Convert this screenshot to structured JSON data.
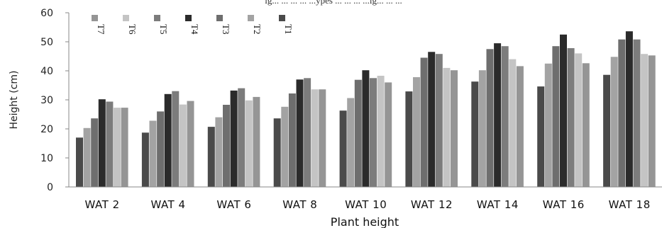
{
  "chart_data": {
    "type": "bar",
    "title": "",
    "top_caption_fragment": "ig... ... ... ... ...ypes ... ... ... ...ig... ... ...",
    "xlabel": "Plant height",
    "ylabel": "Height (cm)",
    "ylim": [
      0,
      60
    ],
    "yticks": [
      0,
      10,
      20,
      30,
      40,
      50,
      60
    ],
    "categories": [
      "WAT 2",
      "WAT 4",
      "WAT 6",
      "WAT 8",
      "WAT 10",
      "WAT 12",
      "WAT 14",
      "WAT 16",
      "WAT 18"
    ],
    "legend_position": "top-left, rotated labels",
    "grid": false,
    "series": [
      {
        "name": "T1",
        "color": "#4a4a4a",
        "values": [
          17.0,
          18.7,
          20.7,
          23.6,
          26.3,
          32.9,
          36.3,
          34.6,
          38.6
        ]
      },
      {
        "name": "T2",
        "color": "#a3a3a3",
        "values": [
          20.3,
          22.8,
          24.0,
          27.6,
          30.6,
          37.8,
          40.2,
          42.5,
          44.8
        ]
      },
      {
        "name": "T3",
        "color": "#6e6e6e",
        "values": [
          23.6,
          26.0,
          28.3,
          32.2,
          36.9,
          44.5,
          47.5,
          48.5,
          50.8
        ]
      },
      {
        "name": "T4",
        "color": "#2b2b2b",
        "values": [
          30.2,
          32.0,
          33.2,
          37.0,
          40.2,
          46.5,
          49.5,
          52.5,
          53.6
        ]
      },
      {
        "name": "T5",
        "color": "#7c7c7c",
        "values": [
          29.4,
          33.0,
          34.0,
          37.5,
          37.5,
          45.8,
          48.5,
          47.8,
          50.8
        ]
      },
      {
        "name": "T6",
        "color": "#c4c4c4",
        "values": [
          27.3,
          28.4,
          29.8,
          33.6,
          38.3,
          41.0,
          44.0,
          46.0,
          45.8
        ]
      },
      {
        "name": "T7",
        "color": "#959595",
        "values": [
          27.3,
          29.6,
          31.0,
          33.6,
          36.0,
          40.2,
          41.6,
          42.6,
          45.3
        ]
      }
    ],
    "legend_order": [
      "T7",
      "T6",
      "T5",
      "T4",
      "T3",
      "T2",
      "T1"
    ]
  }
}
